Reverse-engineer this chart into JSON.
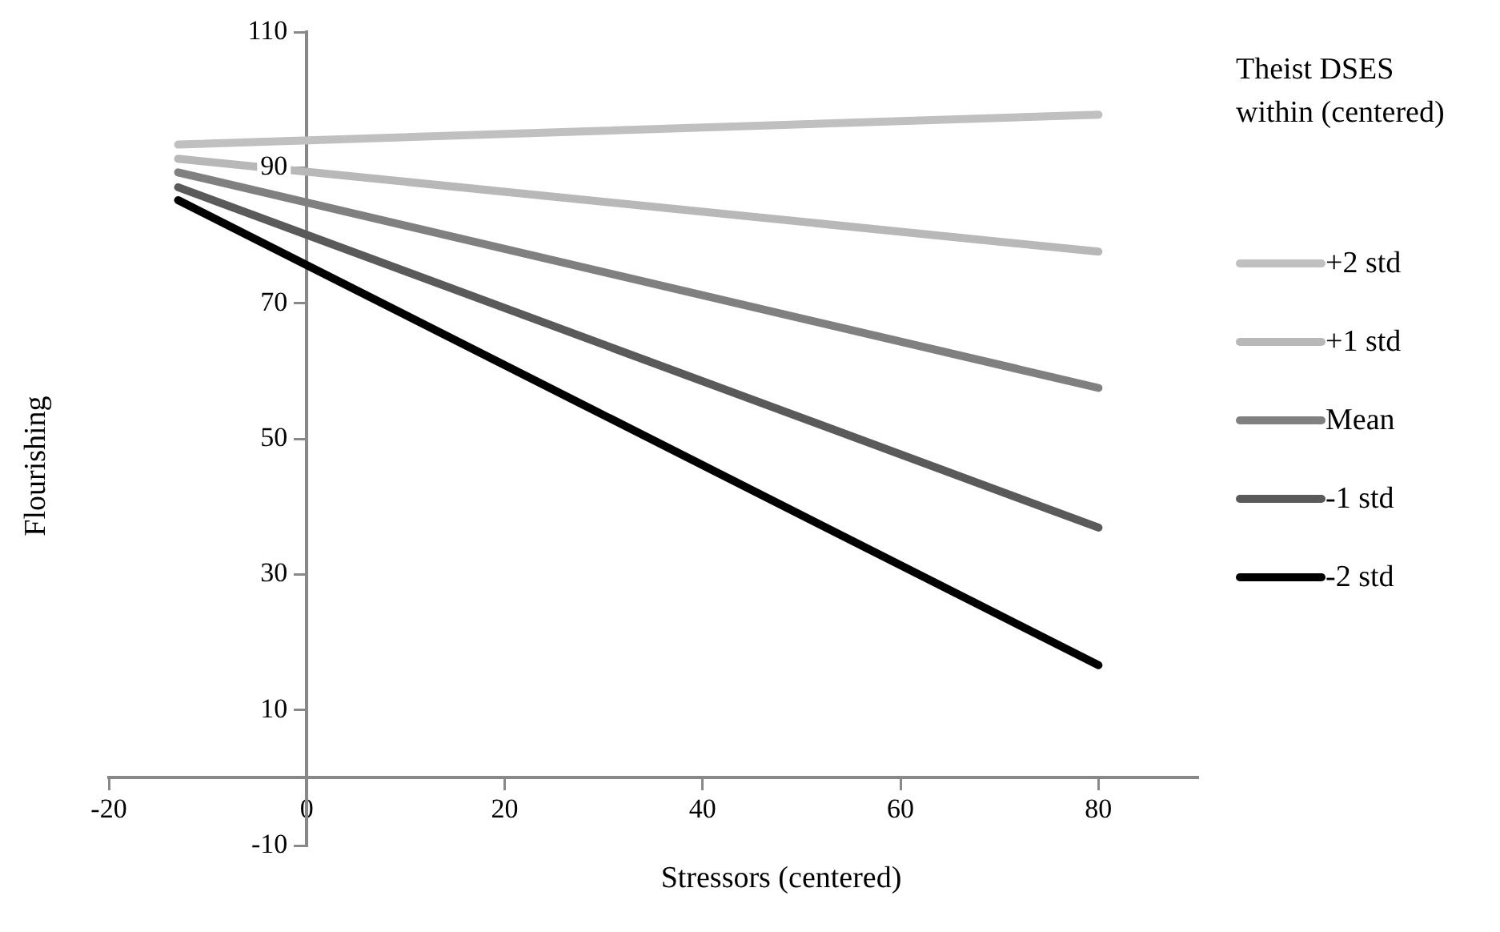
{
  "chart_data": {
    "type": "line",
    "xlabel": "Stressors (centered)",
    "ylabel": "Flourishing",
    "legend_title": "Theist DSES within (centered)",
    "x": [
      -13,
      80
    ],
    "series": [
      {
        "name": "+2 std",
        "color": "#c0c0c0",
        "values": [
          93.4,
          97.8
        ]
      },
      {
        "name": "+1 std",
        "color": "#b8b8b8",
        "values": [
          91.3,
          77.6
        ]
      },
      {
        "name": "Mean",
        "color": "#808080",
        "values": [
          89.3,
          57.5
        ]
      },
      {
        "name": "-1 std",
        "color": "#5a5a5a",
        "values": [
          87.1,
          36.9
        ]
      },
      {
        "name": "-2 std",
        "color": "#000000",
        "values": [
          85.2,
          16.6
        ]
      }
    ],
    "xlim": [
      -20,
      90
    ],
    "xticks": [
      -20,
      0,
      20,
      40,
      60,
      80
    ],
    "ylim": [
      -10,
      110
    ],
    "yticks": [
      -10,
      10,
      30,
      50,
      70,
      90,
      110
    ],
    "grid": false,
    "legend": "right",
    "marker": "none",
    "line_style": "solid"
  }
}
